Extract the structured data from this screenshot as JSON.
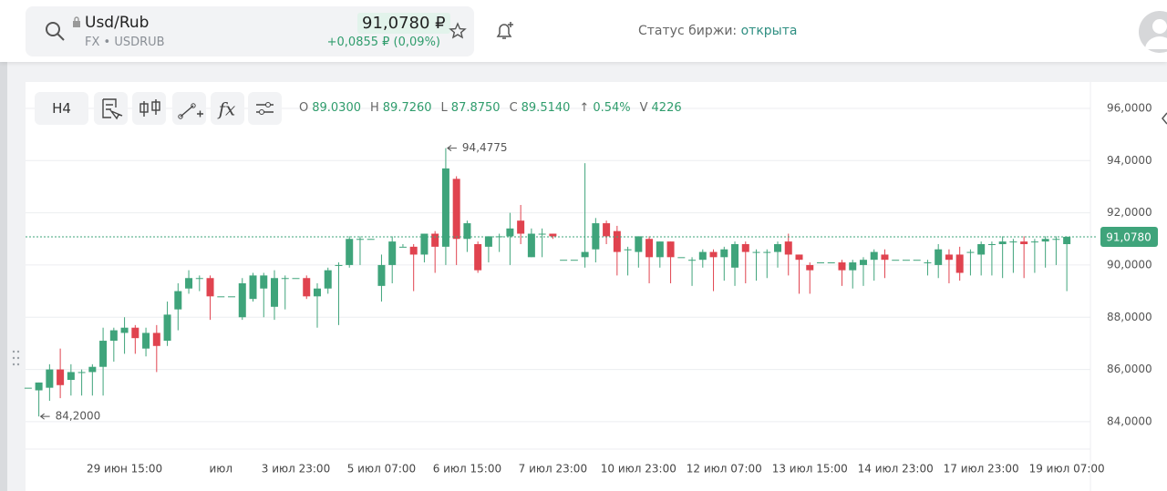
{
  "header": {
    "symbol": "Usd/Rub",
    "exchange": "FX",
    "ticker": "USDRUB",
    "price": "91,0780 ₽",
    "change": "+0,0855 ₽ (0,09%)",
    "status_label": "Статус биржи:",
    "status_value": "открыта"
  },
  "toolbar": {
    "interval": "H4",
    "indicators_icon": "fx"
  },
  "ohlc_info": [
    "O",
    "89.0300",
    "H",
    "89.7260",
    "L",
    "87.8750",
    "C",
    "89.5140",
    "↑",
    "0.54%",
    "V",
    "4226"
  ],
  "chart_data": {
    "type": "candlestick",
    "categories": [
      null,
      null,
      null,
      null,
      null,
      null,
      null,
      null,
      null,
      "29 июн 15:00",
      null,
      null,
      null,
      null,
      null,
      null,
      null,
      null,
      "июл",
      null,
      null,
      null,
      null,
      null,
      null,
      "3 июл 23:00",
      null,
      null,
      null,
      null,
      null,
      null,
      null,
      "5 июл 07:00",
      null,
      null,
      null,
      null,
      null,
      null,
      null,
      "6 июл 15:00",
      null,
      null,
      null,
      null,
      null,
      null,
      null,
      "7 июл 23:00",
      null,
      null,
      null,
      null,
      null,
      null,
      null,
      "10 июл 23:00",
      null,
      null,
      null,
      null,
      null,
      null,
      null,
      "12 июл 07:00",
      null,
      null,
      null,
      null,
      null,
      null,
      null,
      "13 июл 15:00",
      null,
      null,
      null,
      null,
      null,
      null,
      null,
      "14 июл 23:00",
      null,
      null,
      null,
      null,
      null,
      null,
      null,
      "17 июл 23:00",
      null,
      null,
      null,
      null,
      null,
      null,
      null,
      "19 июл 07:00"
    ],
    "open": [
      85.3,
      85.2,
      85.3,
      86.0,
      85.6,
      85.9,
      85.9,
      86.1,
      87.1,
      87.4,
      87.6,
      86.8,
      87.4,
      87.1,
      88.3,
      89.1,
      89.5,
      89.5,
      88.8,
      88.8,
      88.0,
      88.7,
      89.1,
      88.4,
      89.5,
      89.5,
      89.5,
      88.8,
      89.1,
      90.0,
      90.0,
      91.0,
      91.0,
      89.2,
      90.0,
      90.7,
      90.7,
      90.4,
      91.2,
      90.7,
      93.3,
      91.0,
      90.8,
      90.7,
      91.1,
      91.1,
      91.7,
      90.3,
      91.2,
      91.2,
      90.2,
      90.2,
      90.3,
      90.6,
      91.6,
      91.3,
      90.6,
      90.5,
      91.0,
      90.3,
      90.9,
      90.3,
      90.2,
      90.2,
      90.5,
      90.3,
      89.9,
      90.8,
      90.5,
      90.5,
      90.5,
      90.9,
      90.4,
      90.0,
      90.1,
      90.1,
      90.1,
      89.8,
      90.0,
      90.2,
      90.4,
      90.2,
      90.2,
      90.2,
      90.1,
      90.0,
      90.4,
      90.4,
      90.5,
      90.4,
      90.8,
      90.8,
      90.9,
      90.9,
      90.9,
      90.9,
      91.0,
      90.8
    ],
    "high": [
      85.3,
      85.5,
      86.2,
      86.8,
      86.2,
      86.0,
      86.2,
      87.6,
      87.6,
      88.0,
      87.7,
      87.6,
      87.7,
      88.6,
      89.3,
      89.8,
      89.6,
      89.6,
      88.8,
      88.8,
      89.5,
      89.7,
      89.7,
      89.8,
      89.6,
      89.5,
      89.6,
      89.3,
      89.9,
      90.1,
      91.1,
      91.1,
      91.0,
      90.4,
      91.1,
      90.8,
      90.8,
      91.2,
      91.3,
      94.4775,
      93.4,
      91.7,
      90.9,
      91.1,
      91.2,
      92.0,
      92.3,
      91.4,
      91.4,
      91.2,
      90.2,
      90.2,
      93.9,
      91.8,
      91.7,
      91.5,
      90.7,
      91.1,
      91.1,
      90.9,
      90.9,
      90.3,
      90.3,
      90.6,
      90.6,
      90.7,
      90.9,
      90.9,
      90.6,
      90.6,
      90.9,
      91.2,
      90.4,
      90.1,
      90.1,
      90.1,
      90.2,
      90.2,
      90.3,
      90.6,
      90.6,
      90.2,
      90.2,
      90.2,
      90.2,
      90.8,
      90.6,
      90.7,
      90.6,
      90.9,
      90.9,
      91.1,
      91.0,
      91.1,
      91.0,
      91.1,
      91.1,
      91.1
    ],
    "low": [
      85.3,
      84.2,
      84.8,
      84.9,
      85.0,
      85.0,
      85.0,
      85.0,
      86.3,
      86.6,
      86.6,
      86.5,
      85.9,
      86.9,
      87.5,
      88.9,
      89.0,
      87.9,
      88.8,
      88.8,
      87.9,
      88.6,
      88.0,
      87.9,
      88.3,
      89.5,
      88.7,
      87.6,
      88.9,
      87.7,
      89.9,
      90.0,
      91.0,
      88.6,
      89.3,
      90.7,
      89.0,
      90.1,
      89.7,
      90.0,
      90.0,
      90.5,
      89.7,
      90.1,
      90.5,
      90.0,
      90.8,
      90.3,
      90.3,
      91.0,
      90.2,
      90.2,
      89.9,
      90.1,
      90.8,
      89.6,
      89.6,
      89.9,
      89.3,
      89.9,
      89.3,
      90.3,
      89.2,
      89.9,
      89.0,
      89.4,
      89.2,
      89.3,
      89.4,
      89.5,
      89.9,
      89.6,
      88.9,
      88.9,
      90.1,
      90.1,
      89.2,
      89.1,
      89.2,
      89.4,
      89.5,
      90.2,
      90.2,
      90.2,
      89.6,
      89.5,
      89.3,
      89.4,
      89.6,
      89.6,
      89.6,
      89.5,
      89.7,
      89.5,
      89.7,
      89.9,
      90.0,
      89.0
    ],
    "close": [
      85.3,
      85.5,
      86.0,
      85.4,
      85.9,
      85.9,
      86.1,
      87.1,
      87.5,
      87.6,
      87.2,
      87.4,
      86.9,
      88.1,
      89.0,
      89.5,
      89.5,
      88.8,
      88.8,
      88.8,
      89.3,
      89.6,
      89.6,
      89.5,
      89.5,
      89.5,
      88.8,
      89.1,
      89.8,
      90.0,
      91.0,
      91.0,
      91.0,
      90.0,
      90.9,
      90.7,
      90.4,
      91.2,
      90.7,
      93.7,
      91.0,
      91.6,
      89.8,
      91.1,
      91.1,
      91.4,
      91.2,
      91.2,
      91.2,
      91.1,
      90.2,
      90.2,
      90.5,
      91.6,
      91.1,
      90.5,
      90.6,
      91.1,
      90.3,
      90.9,
      90.3,
      90.3,
      90.2,
      90.5,
      90.3,
      90.6,
      90.8,
      90.5,
      90.5,
      90.5,
      90.8,
      90.4,
      90.2,
      89.8,
      90.1,
      90.1,
      89.8,
      90.1,
      90.2,
      90.5,
      90.2,
      90.2,
      90.2,
      90.2,
      90.1,
      90.6,
      90.2,
      89.7,
      90.5,
      90.8,
      90.8,
      90.9,
      90.9,
      90.8,
      90.9,
      91.0,
      91.0,
      91.078
    ],
    "up_color": "#3fa47b",
    "down_color": "#e0434f",
    "ylim": [
      82.95,
      96.94
    ],
    "yticks": [
      {
        "value": 84,
        "label": "84,0000"
      },
      {
        "value": 86,
        "label": "86,0000"
      },
      {
        "value": 88,
        "label": "88,0000"
      },
      {
        "value": 90,
        "label": "90,0000"
      },
      {
        "value": 92,
        "label": "92,0000"
      },
      {
        "value": 94,
        "label": "94,0000"
      },
      {
        "value": 96,
        "label": "96,0000"
      }
    ],
    "grid": true,
    "annotations": [
      {
        "label": "94,4775",
        "value": 94.4775
      },
      {
        "label": "84,2000",
        "value": 84.2
      }
    ],
    "last_price": {
      "value": 91.078,
      "label": "91,0780"
    }
  }
}
